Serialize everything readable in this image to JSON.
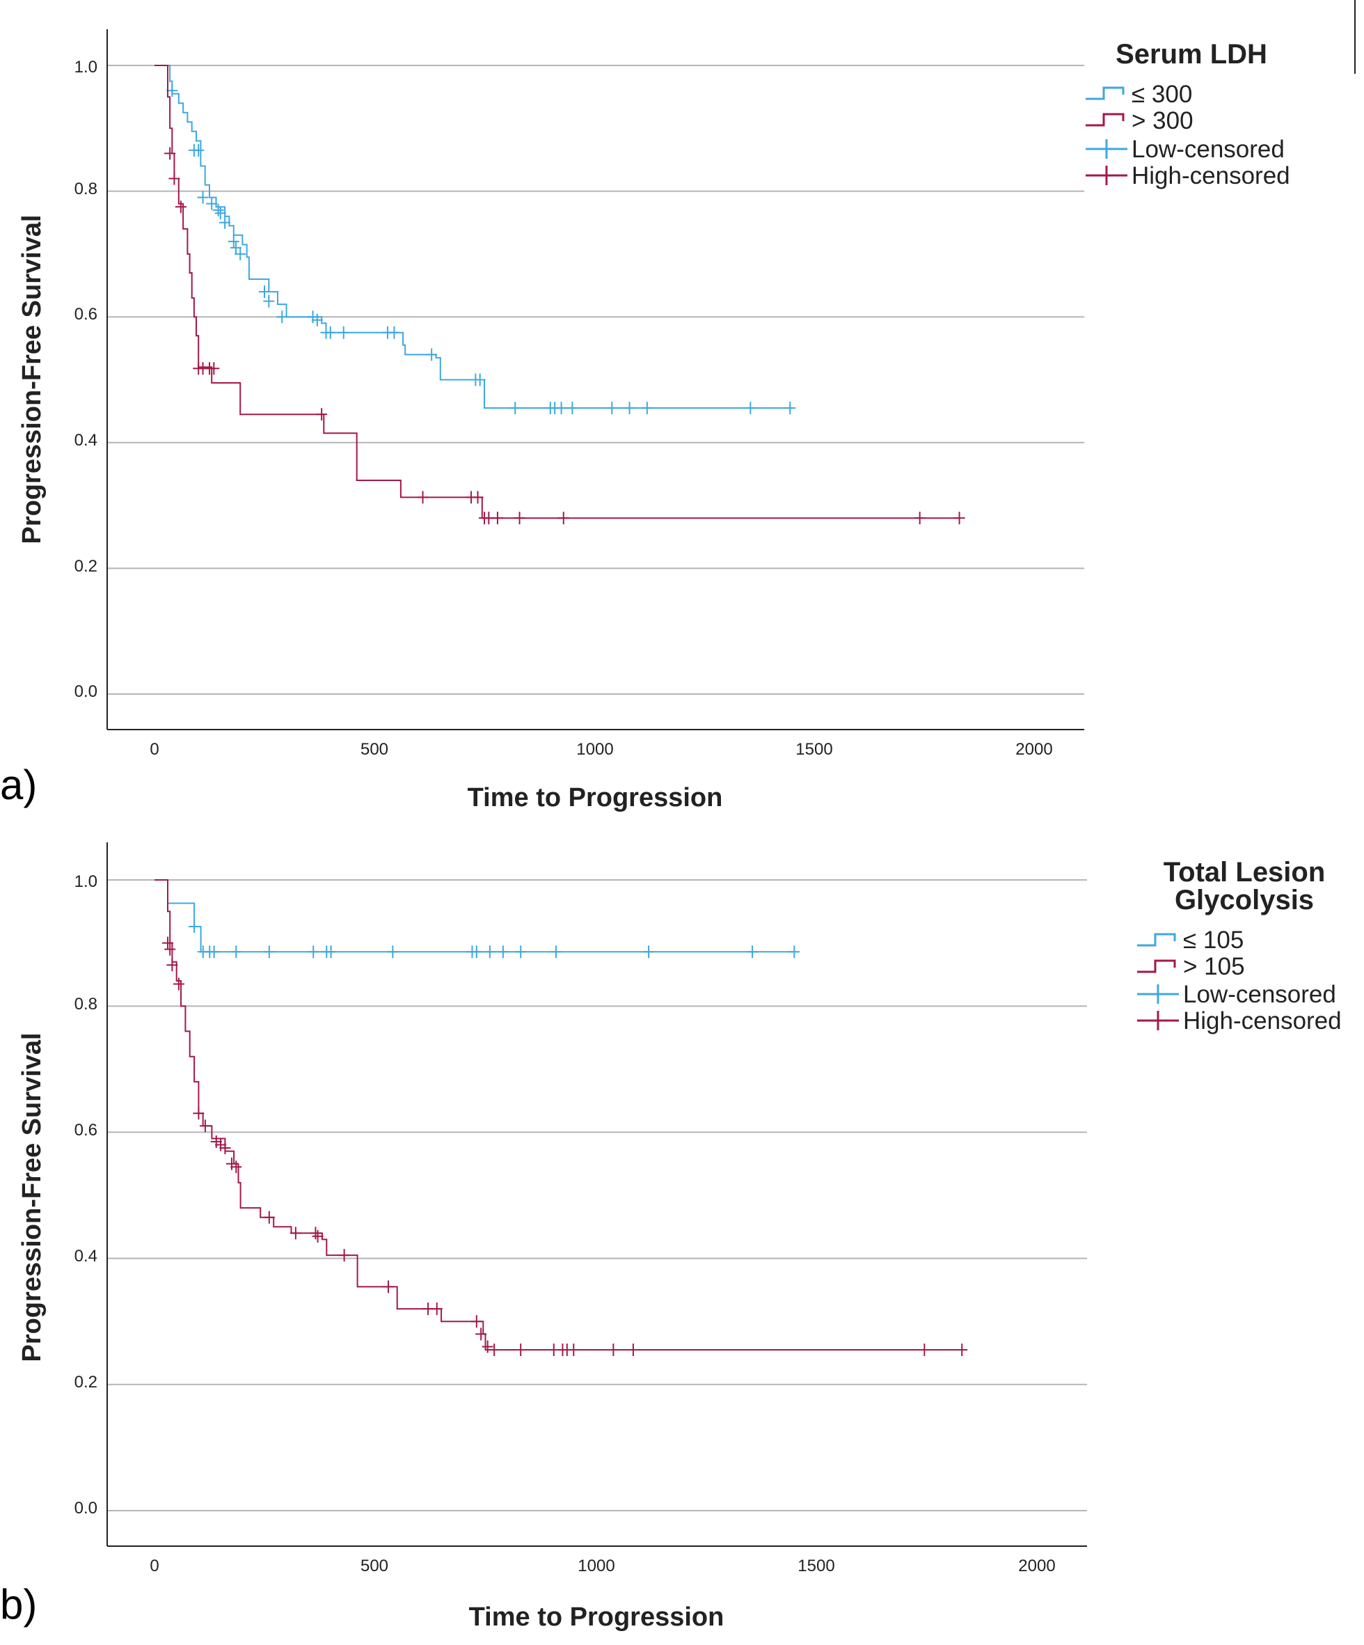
{
  "chart_data": [
    {
      "type": "line",
      "subtype": "kaplan-meier",
      "panel_label": "a)",
      "xlabel": "Time to Progression",
      "ylabel": "Progression-Free Survival",
      "xlim": [
        -100,
        2100
      ],
      "ylim": [
        -0.055,
        1.055
      ],
      "xticks": [
        0,
        500,
        1000,
        1500,
        2000
      ],
      "yticks": [
        0.0,
        0.2,
        0.4,
        0.6,
        0.8,
        1.0
      ],
      "xtick_labels": [
        "0",
        "500",
        "1000",
        "1500",
        "2000"
      ],
      "ytick_labels": [
        "0.0",
        "0.2",
        "0.4",
        "0.6",
        "0.8",
        "1.0"
      ],
      "grid": "horizontal",
      "legend": {
        "title": "Serum LDH",
        "position": "top-right",
        "items": [
          "≤ 300",
          "> 300",
          "Low-censored",
          "High-censored"
        ]
      },
      "series": [
        {
          "name": "≤ 300",
          "color": "#3da8e0",
          "steps": [
            [
              0,
              1.0
            ],
            [
              30,
              1.0
            ],
            [
              35,
              0.975
            ],
            [
              40,
              0.955
            ],
            [
              55,
              0.94
            ],
            [
              65,
              0.925
            ],
            [
              75,
              0.91
            ],
            [
              85,
              0.895
            ],
            [
              95,
              0.88
            ],
            [
              105,
              0.84
            ],
            [
              115,
              0.81
            ],
            [
              125,
              0.79
            ],
            [
              140,
              0.775
            ],
            [
              160,
              0.76
            ],
            [
              170,
              0.745
            ],
            [
              180,
              0.73
            ],
            [
              200,
              0.715
            ],
            [
              210,
              0.695
            ],
            [
              215,
              0.66
            ],
            [
              260,
              0.64
            ],
            [
              280,
              0.62
            ],
            [
              300,
              0.6
            ],
            [
              380,
              0.59
            ],
            [
              390,
              0.575
            ],
            [
              560,
              0.575
            ],
            [
              565,
              0.555
            ],
            [
              570,
              0.54
            ],
            [
              640,
              0.535
            ],
            [
              650,
              0.5
            ],
            [
              740,
              0.5
            ],
            [
              750,
              0.455
            ],
            [
              1450,
              0.455
            ]
          ],
          "censored": [
            [
              40,
              0.96
            ],
            [
              90,
              0.865
            ],
            [
              100,
              0.865
            ],
            [
              110,
              0.79
            ],
            [
              130,
              0.78
            ],
            [
              145,
              0.77
            ],
            [
              150,
              0.765
            ],
            [
              160,
              0.75
            ],
            [
              180,
              0.72
            ],
            [
              185,
              0.71
            ],
            [
              195,
              0.7
            ],
            [
              250,
              0.64
            ],
            [
              260,
              0.625
            ],
            [
              290,
              0.6
            ],
            [
              360,
              0.6
            ],
            [
              370,
              0.595
            ],
            [
              390,
              0.575
            ],
            [
              400,
              0.575
            ],
            [
              430,
              0.575
            ],
            [
              530,
              0.575
            ],
            [
              545,
              0.575
            ],
            [
              630,
              0.54
            ],
            [
              730,
              0.5
            ],
            [
              740,
              0.5
            ],
            [
              820,
              0.455
            ],
            [
              900,
              0.455
            ],
            [
              910,
              0.455
            ],
            [
              925,
              0.455
            ],
            [
              950,
              0.455
            ],
            [
              1040,
              0.455
            ],
            [
              1080,
              0.455
            ],
            [
              1120,
              0.455
            ],
            [
              1355,
              0.455
            ],
            [
              1445,
              0.455
            ]
          ]
        },
        {
          "name": "> 300",
          "color": "#a3184a",
          "steps": [
            [
              0,
              1.0
            ],
            [
              25,
              1.0
            ],
            [
              30,
              0.95
            ],
            [
              35,
              0.9
            ],
            [
              40,
              0.86
            ],
            [
              45,
              0.82
            ],
            [
              55,
              0.78
            ],
            [
              65,
              0.74
            ],
            [
              75,
              0.7
            ],
            [
              80,
              0.67
            ],
            [
              85,
              0.63
            ],
            [
              90,
              0.6
            ],
            [
              95,
              0.57
            ],
            [
              100,
              0.52
            ],
            [
              120,
              0.52
            ],
            [
              130,
              0.495
            ],
            [
              190,
              0.495
            ],
            [
              195,
              0.445
            ],
            [
              380,
              0.445
            ],
            [
              385,
              0.415
            ],
            [
              450,
              0.415
            ],
            [
              460,
              0.34
            ],
            [
              550,
              0.34
            ],
            [
              560,
              0.313
            ],
            [
              740,
              0.313
            ],
            [
              745,
              0.28
            ],
            [
              1830,
              0.28
            ]
          ],
          "censored": [
            [
              35,
              0.86
            ],
            [
              45,
              0.82
            ],
            [
              60,
              0.775
            ],
            [
              100,
              0.518
            ],
            [
              110,
              0.518
            ],
            [
              125,
              0.518
            ],
            [
              135,
              0.518
            ],
            [
              380,
              0.445
            ],
            [
              610,
              0.313
            ],
            [
              720,
              0.313
            ],
            [
              735,
              0.313
            ],
            [
              750,
              0.28
            ],
            [
              760,
              0.28
            ],
            [
              780,
              0.28
            ],
            [
              830,
              0.28
            ],
            [
              930,
              0.28
            ],
            [
              1740,
              0.28
            ],
            [
              1830,
              0.28
            ]
          ]
        }
      ]
    },
    {
      "type": "line",
      "subtype": "kaplan-meier",
      "panel_label": "b)",
      "xlabel": "Time to Progression",
      "ylabel": "Progression-Free Survival",
      "xlim": [
        -100,
        2100
      ],
      "ylim": [
        -0.055,
        1.055
      ],
      "xticks": [
        0,
        500,
        1000,
        1500,
        2000
      ],
      "yticks": [
        0.0,
        0.2,
        0.4,
        0.6,
        0.8,
        1.0
      ],
      "xtick_labels": [
        "0",
        "500",
        "1000",
        "1500",
        "2000"
      ],
      "ytick_labels": [
        "0.0",
        "0.2",
        "0.4",
        "0.6",
        "0.8",
        "1.0"
      ],
      "grid": "horizontal",
      "legend": {
        "title_lines": [
          "Total Lesion",
          "Glycolysis"
        ],
        "position": "top-right",
        "items": [
          "≤ 105",
          "> 105",
          "Low-censored",
          "High-censored"
        ]
      },
      "series": [
        {
          "name": "≤ 105",
          "color": "#3da8e0",
          "steps": [
            [
              0,
              1.0
            ],
            [
              25,
              1.0
            ],
            [
              30,
              0.963
            ],
            [
              85,
              0.963
            ],
            [
              90,
              0.926
            ],
            [
              100,
              0.926
            ],
            [
              105,
              0.886
            ],
            [
              1450,
              0.886
            ]
          ],
          "censored": [
            [
              90,
              0.926
            ],
            [
              110,
              0.886
            ],
            [
              125,
              0.886
            ],
            [
              135,
              0.886
            ],
            [
              185,
              0.886
            ],
            [
              260,
              0.886
            ],
            [
              360,
              0.886
            ],
            [
              390,
              0.886
            ],
            [
              400,
              0.886
            ],
            [
              540,
              0.886
            ],
            [
              720,
              0.886
            ],
            [
              730,
              0.886
            ],
            [
              760,
              0.886
            ],
            [
              790,
              0.886
            ],
            [
              830,
              0.886
            ],
            [
              910,
              0.886
            ],
            [
              1120,
              0.886
            ],
            [
              1355,
              0.886
            ],
            [
              1450,
              0.886
            ]
          ]
        },
        {
          "name": "> 105",
          "color": "#a3184a",
          "steps": [
            [
              0,
              1.0
            ],
            [
              25,
              1.0
            ],
            [
              30,
              0.95
            ],
            [
              35,
              0.9
            ],
            [
              40,
              0.87
            ],
            [
              50,
              0.84
            ],
            [
              60,
              0.8
            ],
            [
              70,
              0.76
            ],
            [
              80,
              0.72
            ],
            [
              90,
              0.68
            ],
            [
              100,
              0.63
            ],
            [
              110,
              0.61
            ],
            [
              130,
              0.59
            ],
            [
              160,
              0.57
            ],
            [
              180,
              0.55
            ],
            [
              190,
              0.52
            ],
            [
              195,
              0.48
            ],
            [
              230,
              0.48
            ],
            [
              240,
              0.465
            ],
            [
              270,
              0.45
            ],
            [
              310,
              0.44
            ],
            [
              380,
              0.43
            ],
            [
              390,
              0.405
            ],
            [
              450,
              0.405
            ],
            [
              460,
              0.355
            ],
            [
              530,
              0.355
            ],
            [
              550,
              0.32
            ],
            [
              640,
              0.32
            ],
            [
              650,
              0.3
            ],
            [
              740,
              0.3
            ],
            [
              745,
              0.28
            ],
            [
              750,
              0.255
            ],
            [
              1830,
              0.255
            ]
          ],
          "censored": [
            [
              30,
              0.9
            ],
            [
              35,
              0.89
            ],
            [
              40,
              0.865
            ],
            [
              55,
              0.835
            ],
            [
              100,
              0.63
            ],
            [
              115,
              0.61
            ],
            [
              140,
              0.585
            ],
            [
              150,
              0.58
            ],
            [
              160,
              0.575
            ],
            [
              175,
              0.55
            ],
            [
              185,
              0.545
            ],
            [
              260,
              0.465
            ],
            [
              320,
              0.44
            ],
            [
              365,
              0.44
            ],
            [
              370,
              0.435
            ],
            [
              430,
              0.405
            ],
            [
              530,
              0.355
            ],
            [
              620,
              0.32
            ],
            [
              640,
              0.32
            ],
            [
              730,
              0.3
            ],
            [
              740,
              0.28
            ],
            [
              755,
              0.26
            ],
            [
              770,
              0.255
            ],
            [
              830,
              0.255
            ],
            [
              905,
              0.255
            ],
            [
              925,
              0.255
            ],
            [
              935,
              0.255
            ],
            [
              950,
              0.255
            ],
            [
              1040,
              0.255
            ],
            [
              1085,
              0.255
            ],
            [
              1745,
              0.255
            ],
            [
              1830,
              0.255
            ]
          ]
        }
      ]
    }
  ]
}
